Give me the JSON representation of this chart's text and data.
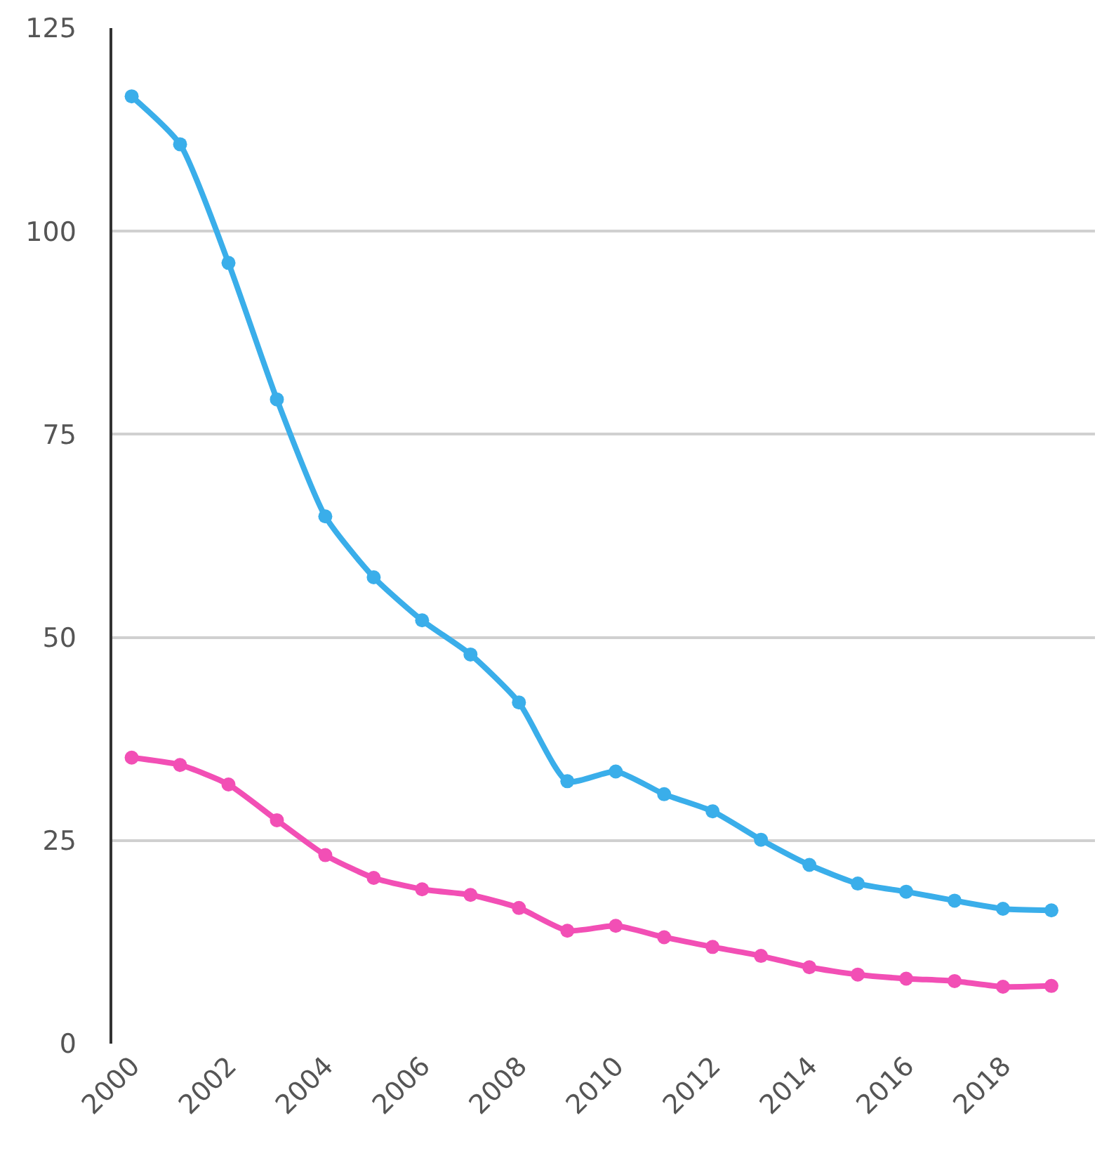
{
  "chart_data": {
    "type": "line",
    "x": [
      2000,
      2001,
      2002,
      2003,
      2004,
      2005,
      2006,
      2007,
      2008,
      2009,
      2010,
      2011,
      2012,
      2013,
      2014,
      2015,
      2016,
      2017,
      2018,
      2019
    ],
    "series": [
      {
        "color": "#3aaeea",
        "values": [
          116.6,
          110.7,
          96.1,
          79.3,
          64.9,
          57.4,
          52.1,
          47.9,
          42.0,
          32.3,
          33.5,
          30.7,
          28.6,
          25.1,
          22.0,
          19.7,
          18.7,
          17.6,
          16.6,
          16.4
        ]
      },
      {
        "color": "#f24fb5",
        "values": [
          35.2,
          34.3,
          31.9,
          27.5,
          23.2,
          20.4,
          19.0,
          18.3,
          16.7,
          13.9,
          14.5,
          13.1,
          11.9,
          10.8,
          9.4,
          8.5,
          8.0,
          7.7,
          7.0,
          7.1
        ]
      }
    ],
    "xlim": [
      1999.6,
      2019.9
    ],
    "xticks": [
      2000,
      2002,
      2004,
      2006,
      2008,
      2010,
      2012,
      2014,
      2016,
      2018
    ],
    "ylim": [
      0,
      125
    ],
    "yticks": [
      0,
      25,
      50,
      75,
      100,
      125
    ],
    "grid": "y",
    "marker": "circle",
    "line_style": "solid"
  }
}
